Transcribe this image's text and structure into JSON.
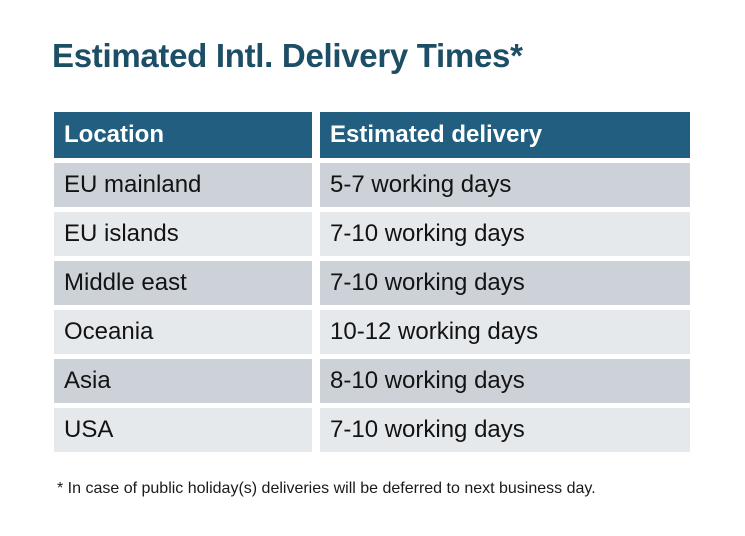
{
  "title": "Estimated Intl. Delivery Times*",
  "footnote": "* In case of public holiday(s) deliveries will be deferred to next business day.",
  "colors": {
    "title_text": "#1C4E66",
    "header_bg": "#215E80",
    "header_text": "#FFFFFF",
    "row_odd_bg": "#CDD2D9",
    "row_even_bg": "#E6E9EC",
    "cell_text": "#131313",
    "page_bg": "#FFFFFF"
  },
  "chart_data": {
    "type": "table",
    "title": "Estimated Intl. Delivery Times*",
    "columns": [
      "Location",
      "Estimated delivery"
    ],
    "rows": [
      [
        "EU mainland",
        "5-7 working days"
      ],
      [
        "EU islands",
        "7-10 working days"
      ],
      [
        "Middle east",
        "7-10 working days"
      ],
      [
        "Oceania",
        "10-12 working days"
      ],
      [
        "Asia",
        "8-10 working days"
      ],
      [
        "USA",
        "7-10 working days"
      ]
    ],
    "footnote": "* In case of public holiday(s) deliveries will be deferred to next business day.",
    "legend": false,
    "grid": false
  }
}
